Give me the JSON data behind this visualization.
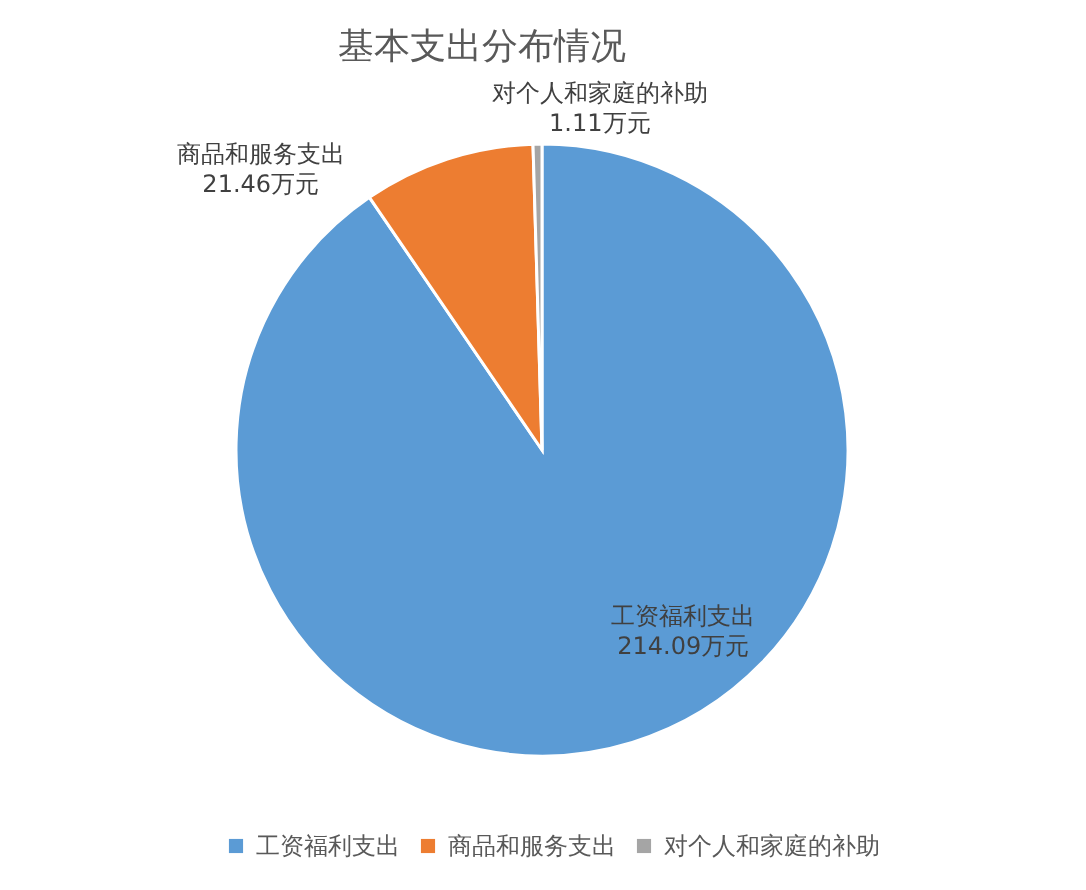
{
  "chart_data": {
    "type": "pie",
    "title": "基本支出分布情况",
    "categories": [
      "工资福利支出",
      "商品和服务支出",
      "对个人和家庭的补助"
    ],
    "values": [
      214.09,
      21.46,
      1.11
    ],
    "colors": [
      "#5b9bd5",
      "#ed7d31",
      "#a5a5a5"
    ],
    "value_labels": [
      "214.09万元",
      "21.46万元",
      "1.11万元"
    ],
    "legend": "bottom"
  }
}
